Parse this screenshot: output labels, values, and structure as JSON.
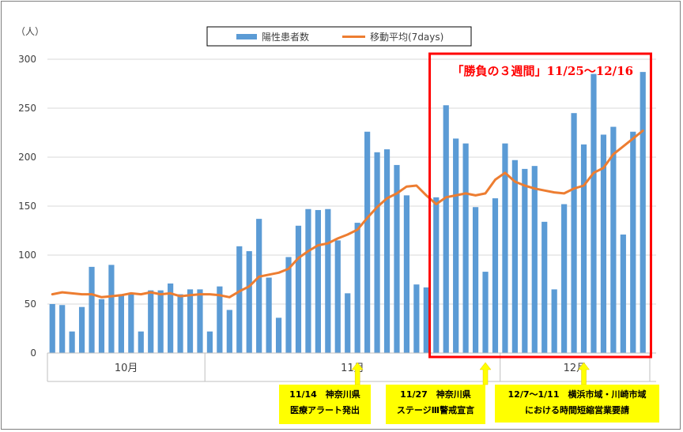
{
  "chart_data": {
    "type": "bar",
    "yunit": "（人）",
    "ylim": [
      0,
      300
    ],
    "yticks": [
      0,
      50,
      100,
      150,
      200,
      250,
      300
    ],
    "grid": true,
    "legend_position": "top",
    "months": [
      {
        "label": "10月",
        "start": 0,
        "end": 16
      },
      {
        "label": "11月",
        "start": 16,
        "end": 46
      },
      {
        "label": "12月",
        "start": 46,
        "end": 66
      }
    ],
    "series": [
      {
        "name": "陽性患者数",
        "kind": "bar",
        "color": "#5b9bd5",
        "values": [
          50,
          49,
          22,
          47,
          88,
          55,
          90,
          60,
          61,
          22,
          64,
          64,
          71,
          60,
          65,
          65,
          22,
          68,
          44,
          109,
          104,
          137,
          77,
          36,
          98,
          130,
          147,
          146,
          147,
          115,
          61,
          133,
          226,
          205,
          208,
          192,
          161,
          70,
          67,
          159,
          253,
          219,
          214,
          149,
          83,
          158,
          214,
          197,
          188,
          191,
          134,
          65,
          152,
          245,
          213,
          285,
          223,
          231,
          121,
          226,
          287
        ]
      },
      {
        "name": "移動平均(7days)",
        "kind": "line",
        "color": "#ed7d31",
        "values": [
          60,
          62,
          61,
          60,
          60,
          57,
          58,
          59,
          61,
          60,
          62,
          60,
          61,
          58,
          59,
          60,
          60,
          59,
          57,
          63,
          68,
          78,
          80,
          82,
          86,
          97,
          104,
          110,
          112,
          117,
          121,
          126,
          138,
          149,
          158,
          163,
          170,
          171,
          161,
          152,
          159,
          161,
          163,
          161,
          163,
          177,
          184,
          175,
          171,
          168,
          166,
          164,
          163,
          168,
          171,
          184,
          189,
          203,
          211,
          219,
          227
        ]
      }
    ],
    "highlight": {
      "label": "「勝負の３週間」11/25〜12/16",
      "from_day": 39,
      "to_day": 61,
      "color": "#ff0000"
    },
    "annotations": [
      {
        "day": 31,
        "lines": [
          "11/14　神奈川県",
          "医療アラート発出"
        ]
      },
      {
        "day": 44,
        "lines": [
          "11/27　神奈川県",
          "ステージⅢ警戒宣言"
        ]
      },
      {
        "day": 54,
        "lines": [
          "12/7〜1/11　横浜市域・川崎市域",
          "における時間短縮営業要請"
        ]
      }
    ]
  }
}
